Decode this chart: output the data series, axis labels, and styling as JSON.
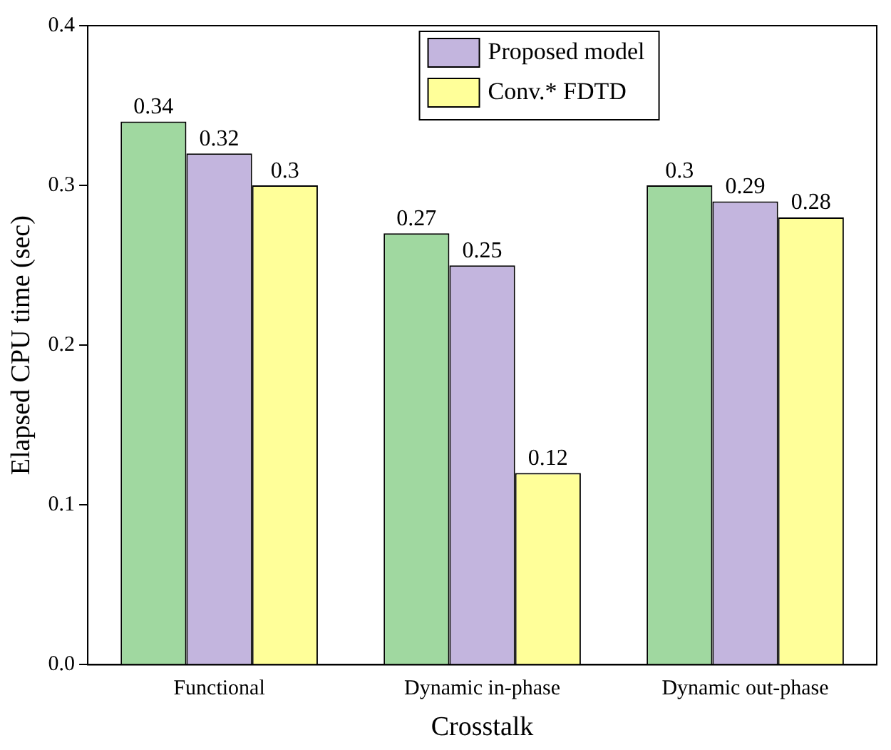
{
  "chart_data": {
    "type": "bar",
    "xlabel": "Crosstalk",
    "ylabel": "Elapsed CPU time (sec)",
    "categories": [
      "Functional",
      "Dynamic in-phase",
      "Dynamic out-phase"
    ],
    "series": [
      {
        "color": "#a0d8a0",
        "values": [
          0.34,
          0.27,
          0.3
        ]
      },
      {
        "name": "Proposed model",
        "color": "#c3b5de",
        "values": [
          0.32,
          0.25,
          0.29
        ]
      },
      {
        "name": "Conv.* FDTD",
        "color": "#ffff99",
        "values": [
          0.3,
          0.12,
          0.28
        ]
      }
    ],
    "ylim": [
      0,
      0.4
    ],
    "yticks": [
      {
        "value": 0,
        "label": "0.0"
      },
      {
        "value": 0.1,
        "label": "0.1"
      },
      {
        "value": 0.2,
        "label": "0.2"
      },
      {
        "value": 0.3,
        "label": "0.3"
      },
      {
        "value": 0.4,
        "label": "0.4"
      }
    ],
    "grid": false,
    "legend": "top",
    "data_labels": true
  }
}
